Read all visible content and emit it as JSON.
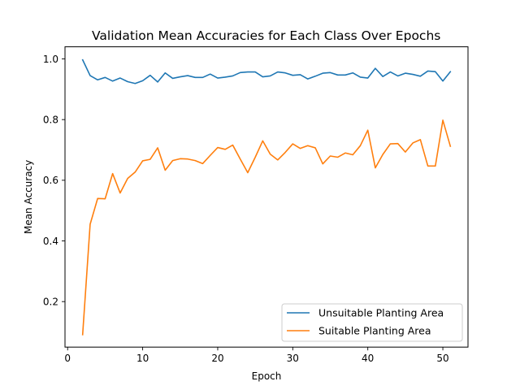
{
  "chart_data": {
    "type": "line",
    "title": "Validation Mean Accuracies for Each Class Over Epochs",
    "xlabel": "Epoch",
    "ylabel": "Mean Accuracy",
    "xlim": [
      -0.35,
      53.35
    ],
    "ylim": [
      0.05,
      1.04
    ],
    "xticks": [
      0,
      10,
      20,
      30,
      40,
      50
    ],
    "yticks": [
      0.2,
      0.4,
      0.6,
      0.8,
      1.0
    ],
    "ytick_labels": [
      "0.2",
      "0.4",
      "0.6",
      "0.8",
      "1.0"
    ],
    "grid": false,
    "legend_position": "lower-right",
    "x": [
      2,
      3,
      4,
      5,
      6,
      7,
      8,
      9,
      10,
      11,
      12,
      13,
      14,
      15,
      16,
      17,
      18,
      19,
      20,
      21,
      22,
      23,
      24,
      25,
      26,
      27,
      28,
      29,
      30,
      31,
      32,
      33,
      34,
      35,
      36,
      37,
      38,
      39,
      40,
      41,
      42,
      43,
      44,
      45,
      46,
      47,
      48,
      49,
      50,
      51
    ],
    "series": [
      {
        "name": "Unsuitable Planting Area",
        "color": "#1f77b4",
        "values": [
          0.997,
          0.945,
          0.931,
          0.939,
          0.927,
          0.937,
          0.925,
          0.919,
          0.928,
          0.946,
          0.924,
          0.954,
          0.936,
          0.941,
          0.945,
          0.939,
          0.939,
          0.95,
          0.937,
          0.94,
          0.944,
          0.955,
          0.957,
          0.957,
          0.941,
          0.944,
          0.957,
          0.954,
          0.946,
          0.948,
          0.934,
          0.943,
          0.953,
          0.955,
          0.947,
          0.947,
          0.954,
          0.94,
          0.937,
          0.969,
          0.942,
          0.957,
          0.944,
          0.953,
          0.949,
          0.943,
          0.96,
          0.958,
          0.927,
          0.958
        ]
      },
      {
        "name": "Suitable Planting Area",
        "color": "#ff7f0e",
        "values": [
          0.091,
          0.455,
          0.54,
          0.539,
          0.622,
          0.558,
          0.606,
          0.627,
          0.664,
          0.669,
          0.707,
          0.633,
          0.665,
          0.671,
          0.67,
          0.665,
          0.655,
          0.682,
          0.708,
          0.702,
          0.716,
          0.67,
          0.625,
          0.676,
          0.73,
          0.686,
          0.667,
          0.692,
          0.72,
          0.705,
          0.714,
          0.707,
          0.654,
          0.68,
          0.676,
          0.69,
          0.684,
          0.714,
          0.765,
          0.641,
          0.685,
          0.72,
          0.721,
          0.693,
          0.723,
          0.734,
          0.647,
          0.647,
          0.798,
          0.712
        ]
      }
    ]
  }
}
